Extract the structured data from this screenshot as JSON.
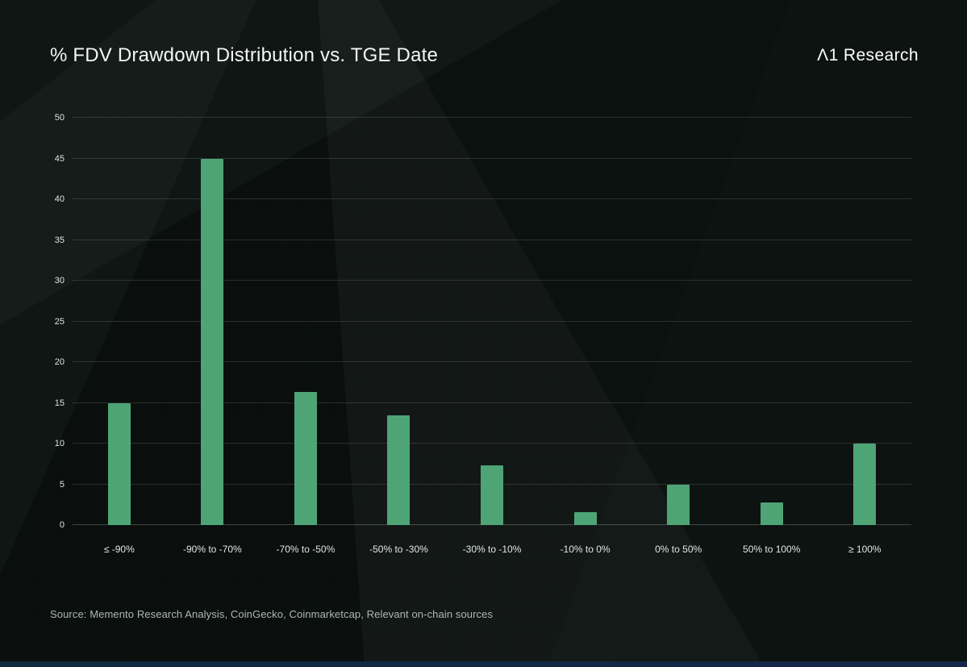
{
  "header": {
    "title": "% FDV Drawdown Distribution vs. TGE Date",
    "logo": "Λ1 Research"
  },
  "source": "Source: Memento Research Analysis, CoinGecko, Coinmarketcap, Relevant on-chain sources",
  "colors": {
    "bar": "#4fa476",
    "background": "#0c1310",
    "grid": "rgba(255,255,255,0.13)",
    "title_text": "#f3f6f4",
    "muted_text": "#aeb7b1"
  },
  "chart_data": {
    "type": "bar",
    "title": "% FDV Drawdown Distribution vs. TGE Date",
    "categories": [
      "≤ -90%",
      "-90% to -70%",
      "-70% to -50%",
      "-50% to -30%",
      "-30% to -10%",
      "-10% to 0%",
      "0% to 50%",
      "50% to 100%",
      "≥ 100%"
    ],
    "values": [
      15,
      45,
      16.3,
      13.5,
      7.3,
      1.6,
      5,
      2.8,
      10
    ],
    "xlabel": "",
    "ylabel": "",
    "ylim": [
      0,
      50
    ],
    "yticks": [
      0,
      5,
      10,
      15,
      20,
      25,
      30,
      35,
      40,
      45,
      50
    ],
    "grid": true,
    "legend": false
  }
}
